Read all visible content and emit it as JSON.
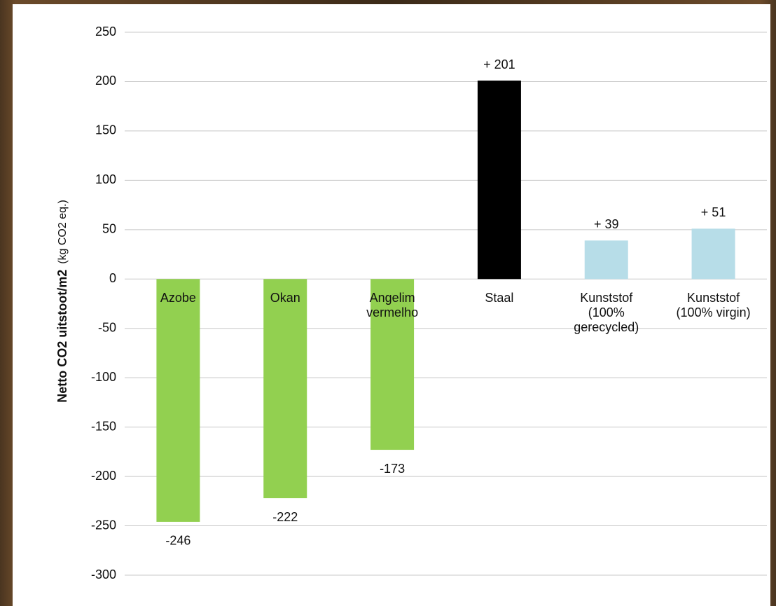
{
  "chart_data": {
    "type": "bar",
    "ylabel": "Netto CO2 uitstoot/m2",
    "ylabel_unit": "(kg CO2 eq.)",
    "categories": [
      [
        "Azobe"
      ],
      [
        "Okan"
      ],
      [
        "Angelim",
        "vermelho"
      ],
      [
        "Staal"
      ],
      [
        "Kunststof",
        "(100%",
        "gerecycled)"
      ],
      [
        "Kunststof",
        "(100% virgin)"
      ]
    ],
    "values": [
      -246,
      -222,
      -173,
      201,
      39,
      51
    ],
    "value_labels": [
      "-246",
      "-222",
      "-173",
      "+ 201",
      "+ 39",
      "+ 51"
    ],
    "colors": [
      "#92d050",
      "#92d050",
      "#92d050",
      "#000000",
      "#b7dde8",
      "#b7dde8"
    ],
    "ylim": [
      -300,
      250
    ],
    "yticks": [
      -300,
      -250,
      -200,
      -150,
      -100,
      -50,
      0,
      50,
      100,
      150,
      200,
      250
    ],
    "grid": true
  }
}
